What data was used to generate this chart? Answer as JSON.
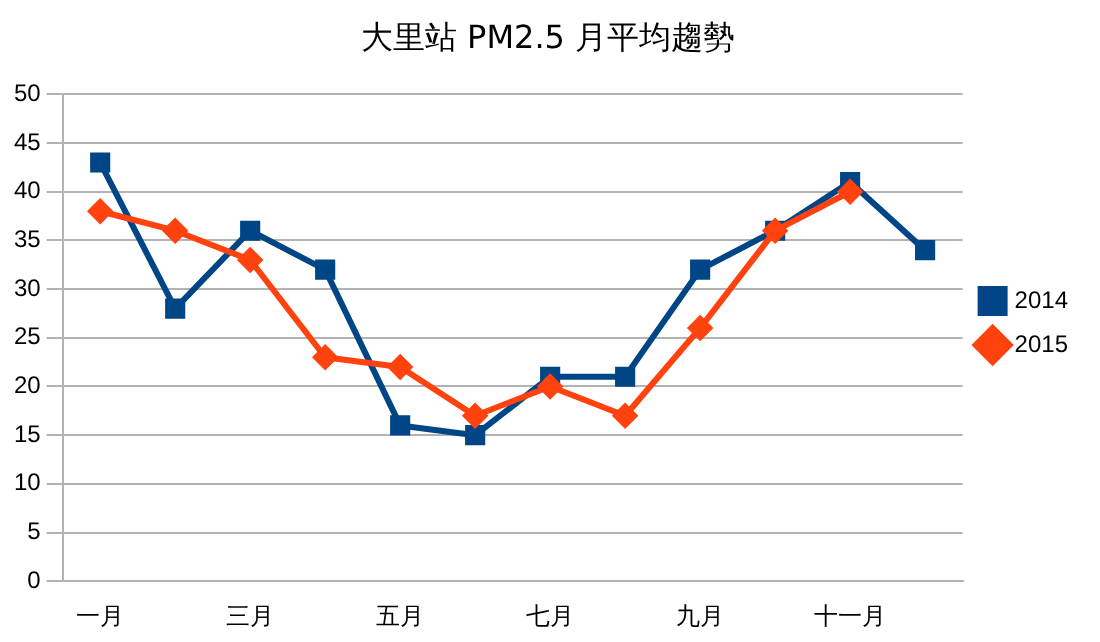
{
  "chart_data": {
    "type": "line",
    "title": "大里站 PM2.5 月平均趨勢",
    "categories": [
      "一月",
      null,
      "三月",
      null,
      "五月",
      null,
      "七月",
      null,
      "九月",
      null,
      "十一月",
      null
    ],
    "series": [
      {
        "name": "2014",
        "color": "#004586",
        "marker": "square",
        "values": [
          43,
          28,
          36,
          32,
          16,
          15,
          21,
          21,
          32,
          36,
          41,
          34
        ]
      },
      {
        "name": "2015",
        "color": "#ff420e",
        "marker": "diamond",
        "values": [
          38,
          36,
          33,
          23,
          22,
          17,
          20,
          17,
          26,
          36,
          40,
          null
        ]
      }
    ],
    "ylim": [
      0,
      50
    ],
    "yticks": [
      0,
      5,
      10,
      15,
      20,
      25,
      30,
      35,
      40,
      45,
      50
    ],
    "grid": "y",
    "legend": "right",
    "line_style": "solid"
  }
}
